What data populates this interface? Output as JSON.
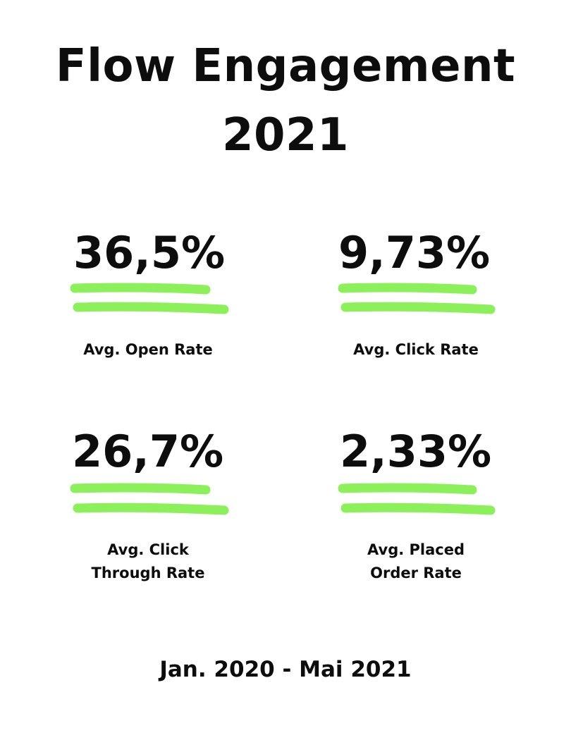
{
  "title": {
    "line1": "Flow Engagement",
    "line2": "2021"
  },
  "metrics": [
    {
      "value": "36,5%",
      "label_line1": "Avg. Open Rate",
      "label_line2": ""
    },
    {
      "value": "9,73%",
      "label_line1": "Avg. Click Rate",
      "label_line2": ""
    },
    {
      "value": "26,7%",
      "label_line1": "Avg. Click",
      "label_line2": "Through Rate"
    },
    {
      "value": "2,33%",
      "label_line1": "Avg. Placed",
      "label_line2": "Order Rate"
    }
  ],
  "footer": "Jan. 2020 - Mai 2021",
  "colors": {
    "accent": "#8cf05a",
    "text": "#0d0d0d",
    "background": "#ffffff"
  }
}
